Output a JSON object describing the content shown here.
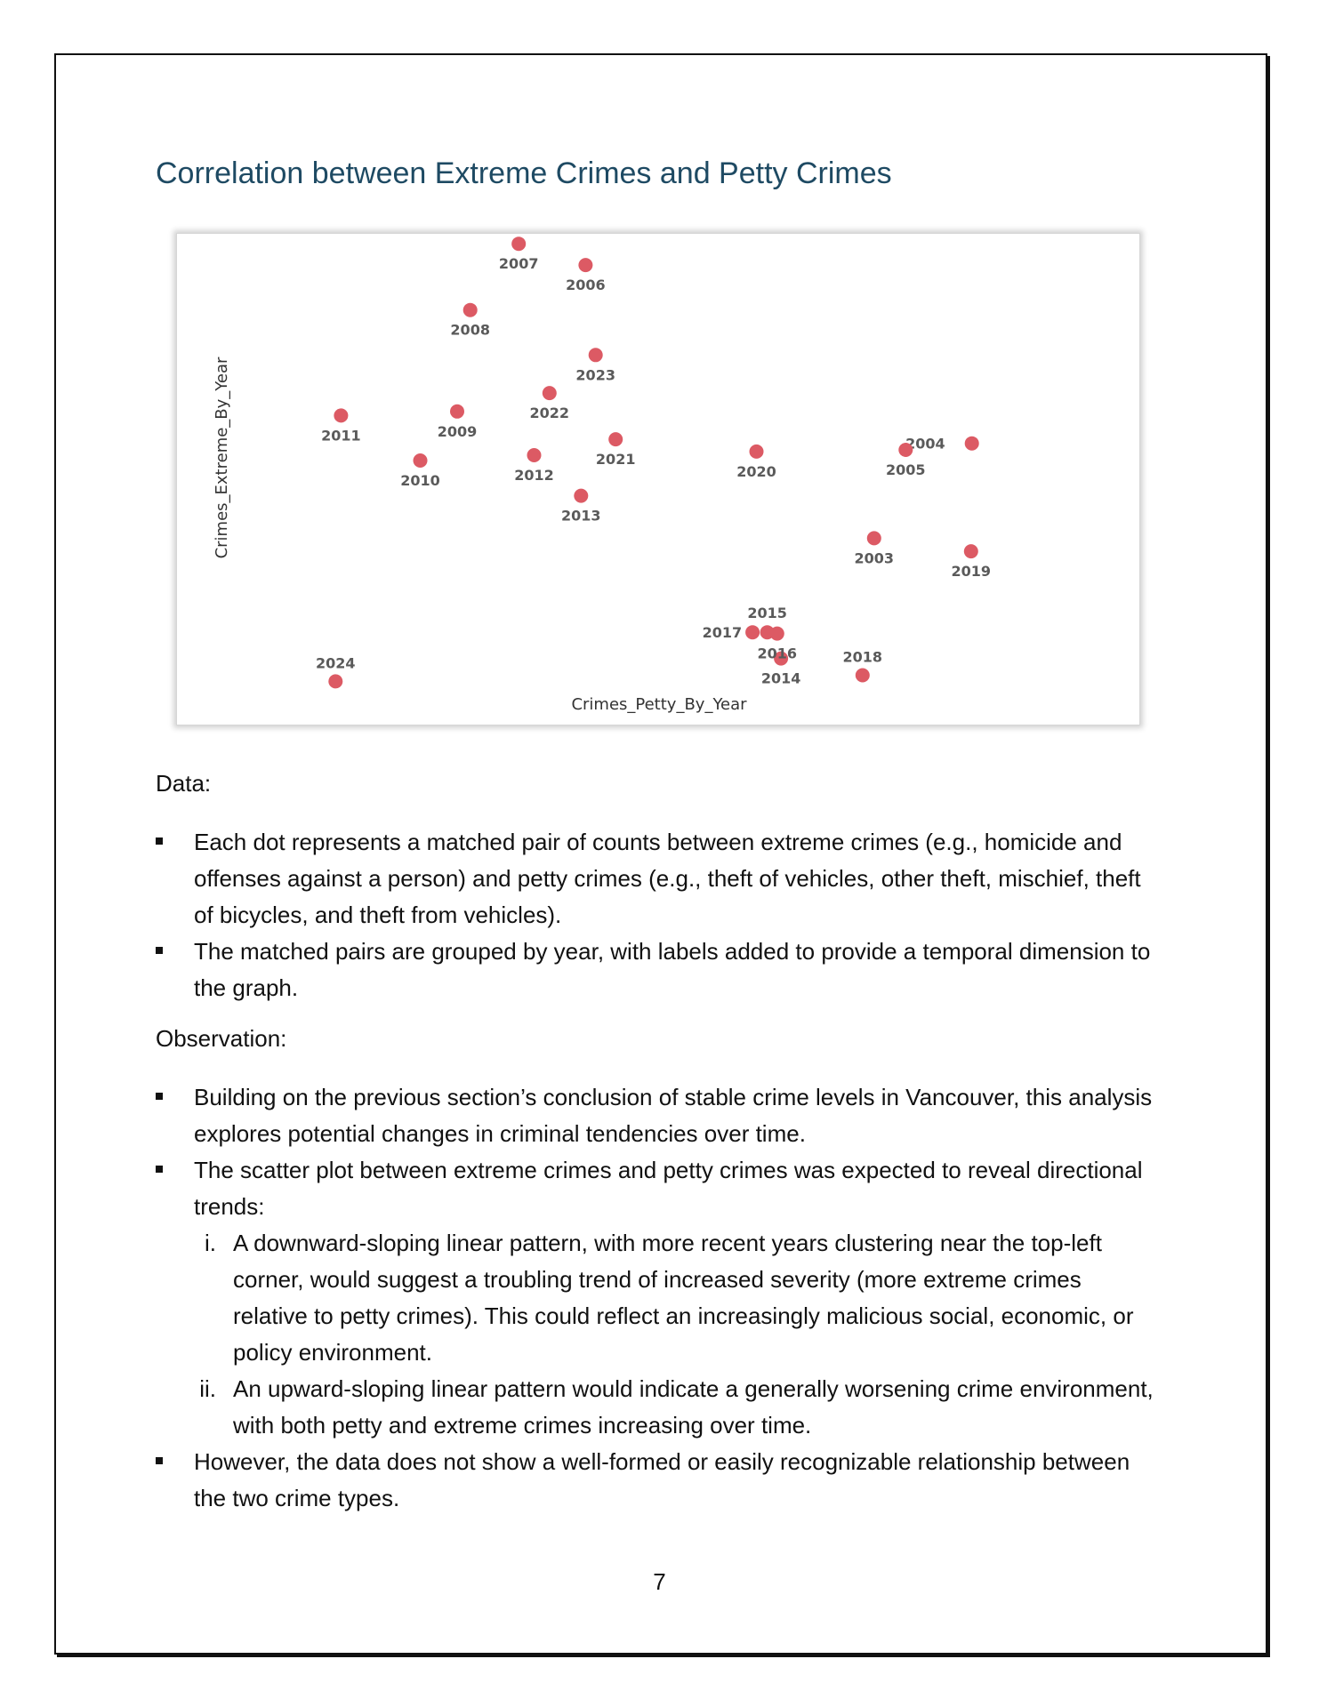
{
  "title": "Correlation between Extreme Crimes and Petty Crimes",
  "chart_data": {
    "type": "scatter",
    "xlabel": "Crimes_Petty_By_Year",
    "ylabel": "Crimes_Extreme_By_Year",
    "dot_color": "#dc5a64",
    "points": [
      {
        "label": "2003",
        "x": 0.831,
        "y": 0.31
      },
      {
        "label": "2004",
        "x": 0.958,
        "y": 0.542
      },
      {
        "label": "2005",
        "x": 0.872,
        "y": 0.526
      },
      {
        "label": "2006",
        "x": 0.456,
        "y": 0.978
      },
      {
        "label": "2007",
        "x": 0.369,
        "y": 1.03
      },
      {
        "label": "2008",
        "x": 0.306,
        "y": 0.868
      },
      {
        "label": "2009",
        "x": 0.289,
        "y": 0.62
      },
      {
        "label": "2010",
        "x": 0.241,
        "y": 0.5
      },
      {
        "label": "2011",
        "x": 0.138,
        "y": 0.61
      },
      {
        "label": "2012",
        "x": 0.389,
        "y": 0.513
      },
      {
        "label": "2013",
        "x": 0.45,
        "y": 0.414
      },
      {
        "label": "2014",
        "x": 0.71,
        "y": 0.016
      },
      {
        "label": "2015",
        "x": 0.692,
        "y": 0.08
      },
      {
        "label": "2016",
        "x": 0.705,
        "y": 0.077
      },
      {
        "label": "2017",
        "x": 0.673,
        "y": 0.08
      },
      {
        "label": "2018",
        "x": 0.816,
        "y": -0.025
      },
      {
        "label": "2019",
        "x": 0.957,
        "y": 0.278
      },
      {
        "label": "2020",
        "x": 0.678,
        "y": 0.522
      },
      {
        "label": "2021",
        "x": 0.495,
        "y": 0.552
      },
      {
        "label": "2022",
        "x": 0.409,
        "y": 0.665
      },
      {
        "label": "2023",
        "x": 0.469,
        "y": 0.758
      },
      {
        "label": "2024",
        "x": 0.131,
        "y": -0.04
      }
    ]
  },
  "data_section": {
    "heading": "Data:",
    "bullets": [
      "Each dot represents a matched pair of counts between extreme crimes (e.g., homicide and offenses against a person) and petty crimes (e.g., theft of vehicles, other theft, mischief, theft of bicycles, and theft from vehicles).",
      "The matched pairs are grouped by year, with labels added to provide a temporal dimension to the graph."
    ]
  },
  "observation_section": {
    "heading": "Observation:",
    "bullet1": "Building on the previous section’s conclusion of stable crime levels in Vancouver, this analysis explores potential changes in criminal tendencies over time.",
    "bullet2": "The scatter plot between extreme crimes and petty crimes was expected to reveal directional trends:",
    "sub_items": [
      {
        "num": "i.",
        "text": "A downward-sloping linear pattern, with more recent years clustering near the top-left corner, would suggest a troubling trend of increased severity (more extreme crimes relative to petty crimes). This could reflect an increasingly malicious social, economic, or policy environment."
      },
      {
        "num": "ii.",
        "text": "An upward-sloping linear pattern would indicate a generally worsening crime environment, with both petty and extreme crimes increasing over time."
      }
    ],
    "bullet3": "However, the data does not show a well-formed or easily recognizable relationship between the two crime types."
  },
  "page_number": "7"
}
